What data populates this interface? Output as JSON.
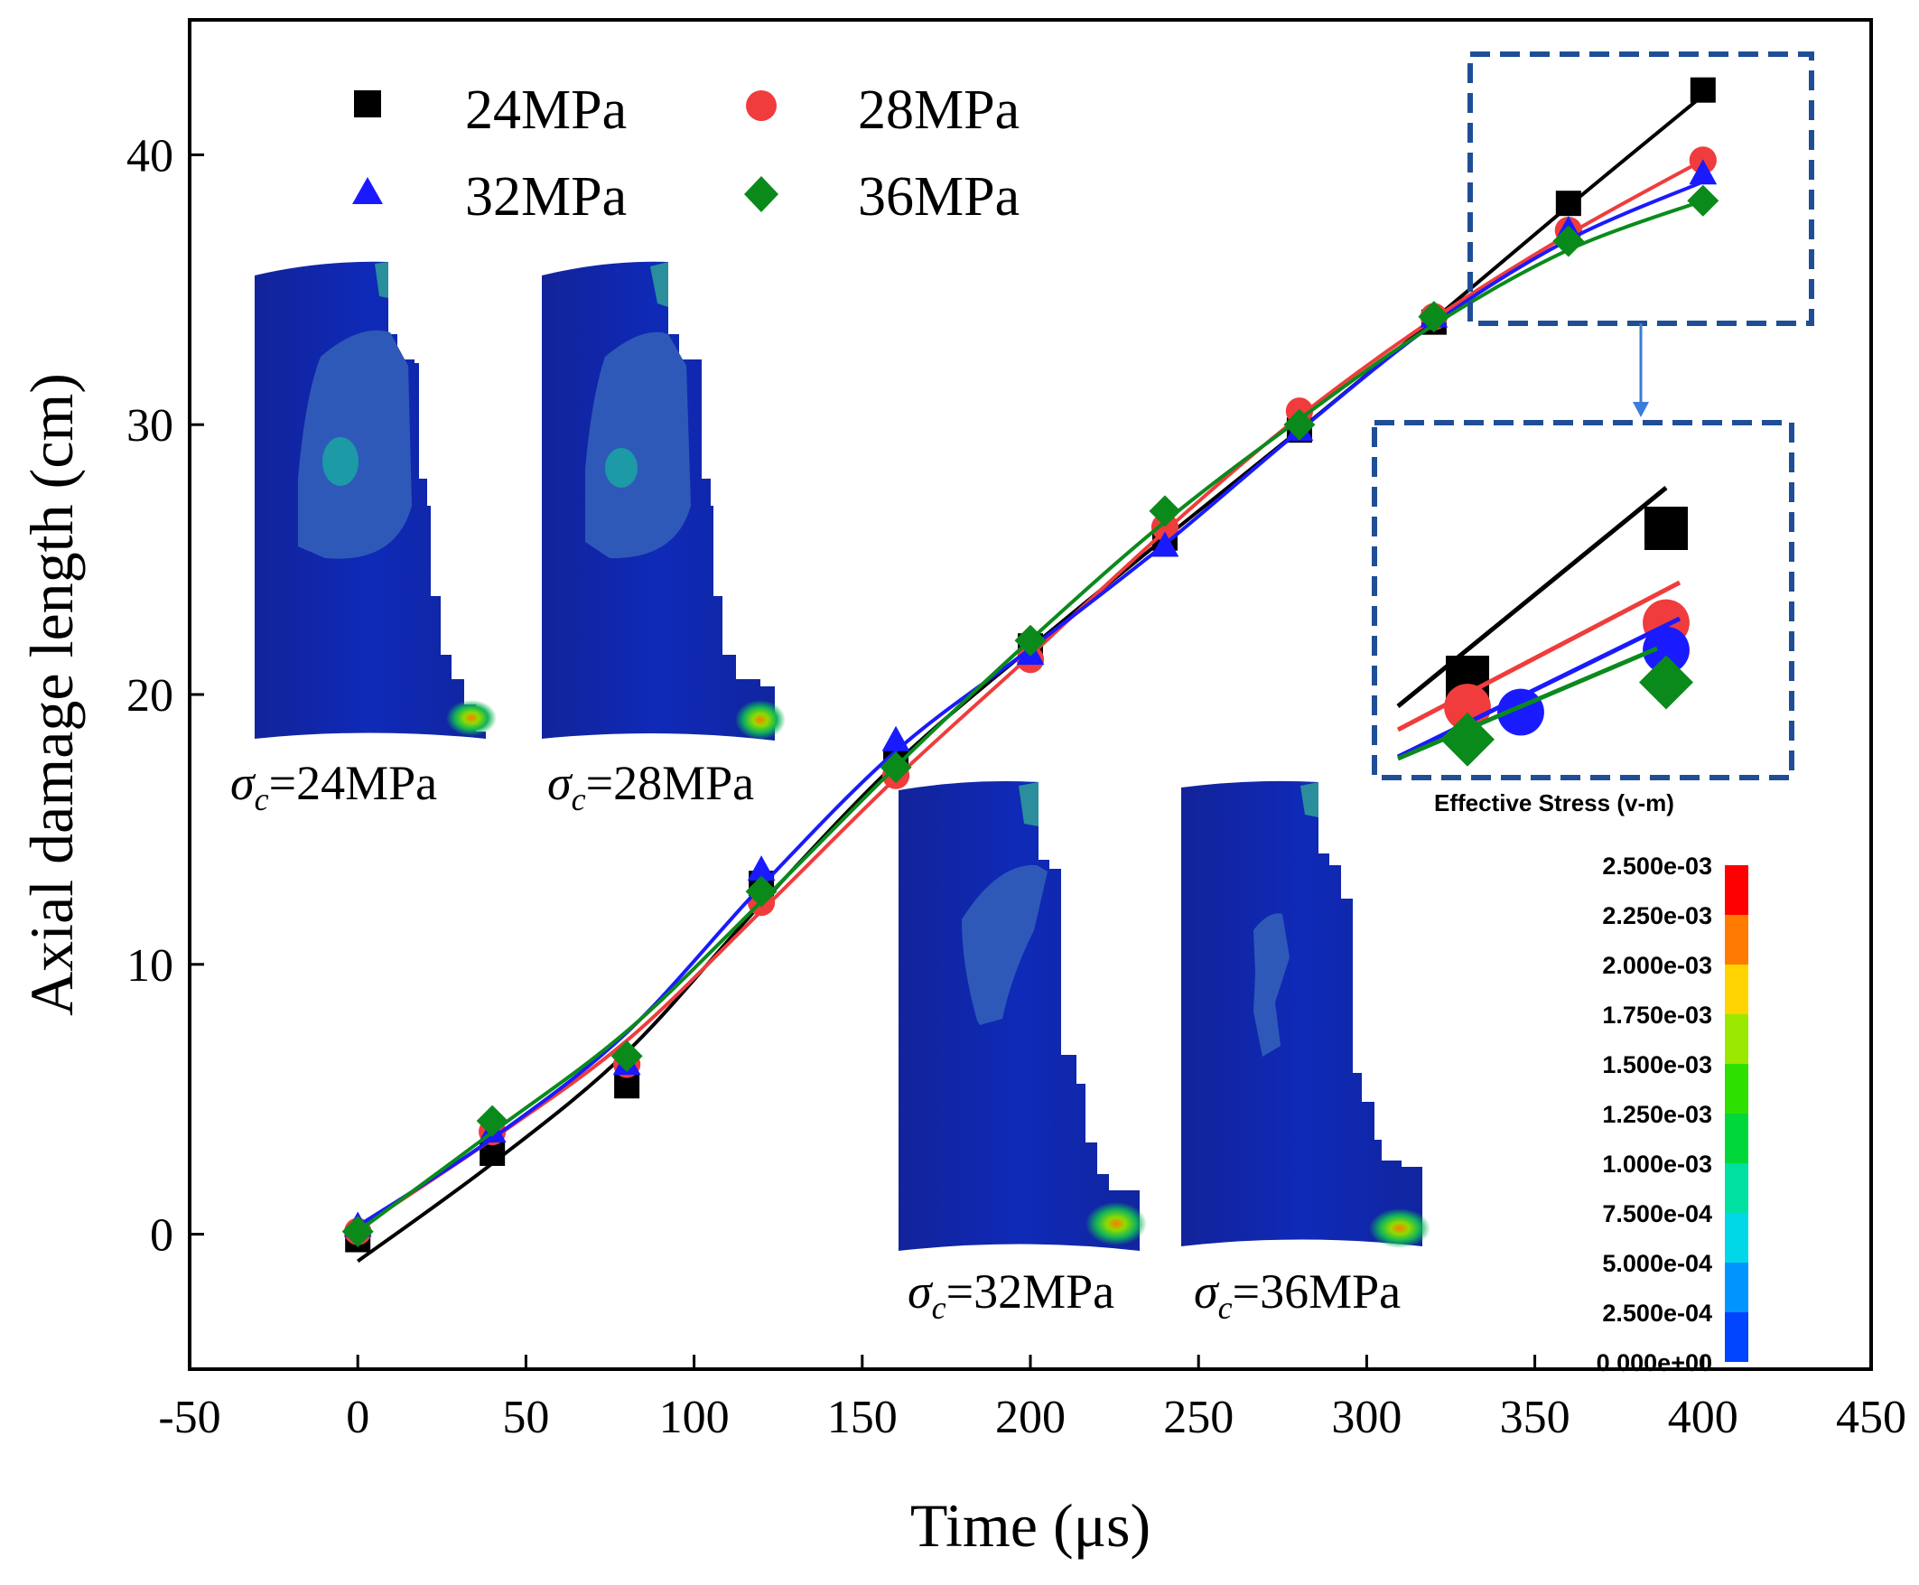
{
  "chart_data": {
    "type": "scatter",
    "title": "",
    "xlabel": "Time (μs)",
    "ylabel": "Axial damage length (cm)",
    "xlim": [
      -50,
      450
    ],
    "ylim": [
      -5,
      45
    ],
    "x_ticks": [
      -50,
      0,
      50,
      100,
      150,
      200,
      250,
      300,
      350,
      400,
      450
    ],
    "y_ticks": [
      0,
      10,
      20,
      30,
      40
    ],
    "x_tick_labels": [
      "-50",
      "0",
      "50",
      "100",
      "150",
      "200",
      "250",
      "300",
      "350",
      "400",
      "450"
    ],
    "y_tick_labels": [
      "0",
      "10",
      "20",
      "30",
      "40"
    ],
    "legend_position": "top-left",
    "series": [
      {
        "name": "24MPa",
        "marker": "square",
        "color": "#000000",
        "x": [
          0,
          40,
          80,
          120,
          160,
          200,
          240,
          280,
          320,
          360,
          400
        ],
        "y": [
          -0.2,
          3.0,
          5.5,
          13.0,
          17.5,
          21.8,
          25.8,
          29.8,
          33.8,
          38.2,
          42.4
        ],
        "fit_end": [
          -1.0,
          42.2
        ]
      },
      {
        "name": "28MPa",
        "marker": "circle",
        "color": "#f03c3c",
        "x": [
          0,
          40,
          80,
          120,
          160,
          200,
          240,
          280,
          320,
          360,
          400
        ],
        "y": [
          0.1,
          3.8,
          6.3,
          12.3,
          17.0,
          21.3,
          26.2,
          30.5,
          34.0,
          37.2,
          39.8
        ],
        "fit_end": [
          0.2,
          39.8
        ]
      },
      {
        "name": "32MPa",
        "marker": "triangle",
        "color": "#1a1aff",
        "x": [
          0,
          40,
          80,
          120,
          160,
          200,
          240,
          280,
          320,
          360,
          400
        ],
        "y": [
          0.3,
          3.8,
          6.3,
          13.5,
          18.3,
          21.5,
          25.5,
          29.8,
          34.0,
          37.2,
          39.3
        ],
        "fit_end": [
          0.3,
          39.0
        ]
      },
      {
        "name": "36MPa",
        "marker": "diamond",
        "color": "#0b8a1c",
        "x": [
          0,
          40,
          80,
          120,
          160,
          200,
          240,
          280,
          320,
          360,
          400
        ],
        "y": [
          0.1,
          4.2,
          6.6,
          12.7,
          17.3,
          22.0,
          26.8,
          30.0,
          34.0,
          36.8,
          38.3
        ],
        "fit_end": [
          0.1,
          38.3
        ]
      }
    ],
    "inset": {
      "label": "Effective Stress (v-m)",
      "points": [
        {
          "series": "24MPa",
          "marker": "square",
          "color": "#000000",
          "values": [
            22.0,
            28.0
          ]
        },
        {
          "series": "28MPa",
          "marker": "circle",
          "color": "#f03c3c",
          "values": [
            20.8,
            24.2
          ]
        },
        {
          "series": "32MPa",
          "marker": "circle",
          "color": "#1a1aff",
          "values": [
            20.6,
            23.1
          ]
        },
        {
          "series": "36MPa",
          "marker": "diamond",
          "color": "#0b8a1c",
          "values": [
            19.5,
            21.8
          ]
        }
      ]
    },
    "colorbar": {
      "ticks": [
        "2.500e-03",
        "2.250e-03",
        "2.000e-03",
        "1.750e-03",
        "1.500e-03",
        "1.250e-03",
        "1.000e-03",
        "7.500e-04",
        "5.000e-04",
        "2.500e-04",
        "0.000e+00"
      ],
      "colors": [
        "#ff0000",
        "#ff7a00",
        "#ffd400",
        "#9be800",
        "#2ee000",
        "#00d83a",
        "#00e0a0",
        "#00d8e8",
        "#0094ff",
        "#0044ff"
      ]
    },
    "contour_labels": [
      "σc=24MPa",
      "σc=28MPa",
      "σc=32MPa",
      "σc=36MPa"
    ],
    "contour_label_parts": [
      {
        "sym": "σ",
        "sub": "c",
        "val": "=24MPa"
      },
      {
        "sym": "σ",
        "sub": "c",
        "val": "=28MPa"
      },
      {
        "sym": "σ",
        "sub": "c",
        "val": "=32MPa"
      },
      {
        "sym": "σ",
        "sub": "c",
        "val": "=36MPa"
      }
    ]
  }
}
